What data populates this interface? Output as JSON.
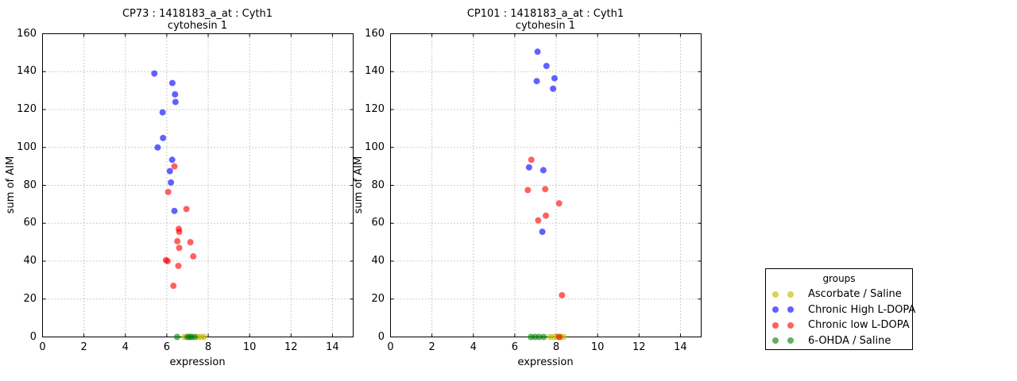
{
  "legend": {
    "title": "groups",
    "items": [
      {
        "label": "Ascorbate / Saline",
        "color": "rgba(191,191,0,0.65)"
      },
      {
        "label": "Chronic High L-DOPA",
        "color": "rgba(0,0,255,0.62)"
      },
      {
        "label": "Chronic low L-DOPA",
        "color": "rgba(255,0,0,0.62)"
      },
      {
        "label": "6-OHDA / Saline",
        "color": "rgba(0,128,0,0.62)"
      }
    ]
  },
  "chart_data": [
    {
      "type": "scatter",
      "title_line1": "CP73 : 1418183_a_at : Cyth1",
      "title_line2": "cytohesin 1",
      "xlabel": "expression",
      "ylabel": "sum of AIM",
      "xlim": [
        0,
        15
      ],
      "ylim": [
        0,
        160
      ],
      "xticks": [
        0,
        2,
        4,
        6,
        8,
        10,
        12,
        14
      ],
      "yticks": [
        0,
        20,
        40,
        60,
        80,
        100,
        120,
        140,
        160
      ],
      "grid": "dotted",
      "legend_position": "outside-right",
      "series": [
        {
          "name": "Ascorbate / Saline",
          "points": [
            [
              6.85,
              0
            ],
            [
              7.5,
              0
            ],
            [
              7.65,
              0
            ],
            [
              7.8,
              0
            ]
          ]
        },
        {
          "name": "Chronic High L-DOPA",
          "points": [
            [
              5.4,
              139
            ],
            [
              6.27,
              134
            ],
            [
              6.4,
              128
            ],
            [
              6.42,
              124
            ],
            [
              5.8,
              118.5
            ],
            [
              5.82,
              105
            ],
            [
              5.56,
              100
            ],
            [
              6.26,
              93.5
            ],
            [
              6.15,
              87.5
            ],
            [
              6.2,
              81.5
            ],
            [
              6.37,
              66.5
            ]
          ]
        },
        {
          "name": "Chronic low L-DOPA",
          "points": [
            [
              6.37,
              90
            ],
            [
              6.07,
              76.5
            ],
            [
              6.95,
              67.5
            ],
            [
              6.58,
              57
            ],
            [
              6.6,
              55.5
            ],
            [
              6.51,
              50.5
            ],
            [
              7.14,
              50
            ],
            [
              6.6,
              47
            ],
            [
              7.28,
              42.5
            ],
            [
              5.96,
              40.5
            ],
            [
              6.04,
              40
            ],
            [
              6.56,
              37.5
            ],
            [
              6.32,
              27
            ]
          ]
        },
        {
          "name": "6-OHDA / Saline",
          "points": [
            [
              6.5,
              0
            ],
            [
              7.0,
              0
            ],
            [
              7.1,
              0
            ],
            [
              7.2,
              0
            ],
            [
              7.35,
              0
            ]
          ]
        }
      ]
    },
    {
      "type": "scatter",
      "title_line1": "CP101 : 1418183_a_at : Cyth1",
      "title_line2": "cytohesin 1",
      "xlabel": "expression",
      "ylabel": "sum of AIM",
      "xlim": [
        0,
        15
      ],
      "ylim": [
        0,
        160
      ],
      "xticks": [
        0,
        2,
        4,
        6,
        8,
        10,
        12,
        14
      ],
      "yticks": [
        0,
        20,
        40,
        60,
        80,
        100,
        120,
        140,
        160
      ],
      "grid": "dotted",
      "legend_position": "outside-right",
      "series": [
        {
          "name": "Ascorbate / Saline",
          "points": [
            [
              7.7,
              0
            ],
            [
              7.9,
              0
            ],
            [
              8.05,
              0
            ],
            [
              8.2,
              0
            ],
            [
              8.35,
              0
            ]
          ]
        },
        {
          "name": "Chronic High L-DOPA",
          "points": [
            [
              7.1,
              150.5
            ],
            [
              7.53,
              143
            ],
            [
              7.06,
              135
            ],
            [
              7.92,
              136.5
            ],
            [
              7.85,
              131
            ],
            [
              6.69,
              89.5
            ],
            [
              7.38,
              88
            ],
            [
              7.33,
              55.5
            ]
          ]
        },
        {
          "name": "Chronic low L-DOPA",
          "points": [
            [
              6.8,
              93.5
            ],
            [
              6.63,
              77.5
            ],
            [
              7.47,
              78
            ],
            [
              8.14,
              70.5
            ],
            [
              7.5,
              64
            ],
            [
              7.13,
              61.5
            ],
            [
              8.28,
              22
            ],
            [
              8.15,
              0
            ]
          ]
        },
        {
          "name": "6-OHDA / Saline",
          "points": [
            [
              6.78,
              0
            ],
            [
              6.98,
              0
            ],
            [
              7.18,
              0
            ],
            [
              7.4,
              0
            ]
          ]
        }
      ]
    }
  ]
}
